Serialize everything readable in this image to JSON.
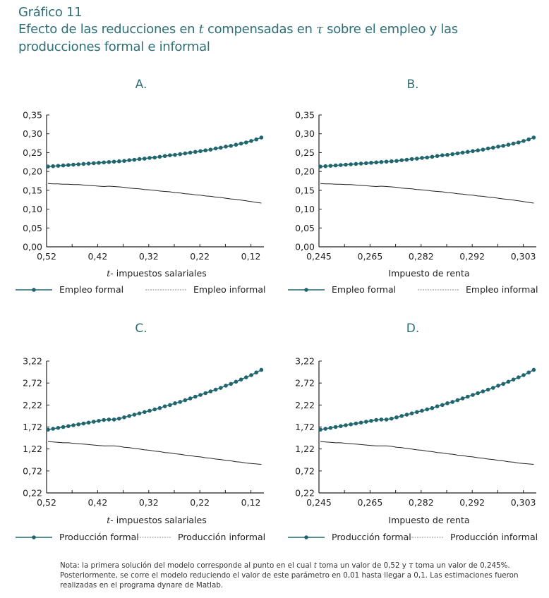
{
  "header": {
    "figure_number": "Gráfico 11",
    "title_part1": "Efecto de las reducciones en ",
    "title_var1": "t",
    "title_part2": " compensadas en ",
    "title_var2": "τ",
    "title_part3": " sobre el empleo y las",
    "title_line3": "producciones formal e informal"
  },
  "note": {
    "part1": "Nota: la primera solución del modelo corresponde al punto en el cual ",
    "var1": "t",
    "part2": " toma un valor de 0,52 y ",
    "var2": "τ",
    "part3": " toma un valor de 0,245%. Posteriormente, se corre el modelo reduciendo el valor de este parámetro en 0,01 hasta llegar a 0,1. Las estimaciones fueron realizadas en el programa dynare de Matlab."
  },
  "colors": {
    "title": "#2e6f77",
    "formal_series": "#1f666e",
    "informal_series": "#222222",
    "axis": "#222222"
  },
  "chart_data": [
    {
      "panel": "A.",
      "type": "line",
      "xlabel_var": "t",
      "xlabel": "- impuestos salariales",
      "ylabel": "",
      "ylim": [
        0.0,
        0.35
      ],
      "yticks": [
        "0,00",
        "0,05",
        "0,10",
        "0,15",
        "0,20",
        "0,25",
        "0,30",
        "0,35"
      ],
      "xtick_labels": [
        "0,52",
        "0,42",
        "0,32",
        "0,22",
        "0,12"
      ],
      "x_direction": "decreasing t from 0.52 to 0.10 in steps of 0.01",
      "legend": "bottom",
      "series": [
        {
          "name": "Empleo formal",
          "marker": "dot",
          "values": [
            0.213,
            0.214,
            0.215,
            0.216,
            0.217,
            0.218,
            0.219,
            0.22,
            0.221,
            0.222,
            0.223,
            0.224,
            0.225,
            0.226,
            0.227,
            0.228,
            0.23,
            0.231,
            0.233,
            0.234,
            0.236,
            0.237,
            0.239,
            0.241,
            0.243,
            0.244,
            0.246,
            0.248,
            0.25,
            0.252,
            0.254,
            0.256,
            0.258,
            0.261,
            0.263,
            0.266,
            0.268,
            0.271,
            0.274,
            0.277,
            0.281,
            0.285,
            0.29
          ]
        },
        {
          "name": "Empleo informal",
          "marker": "none",
          "values": [
            0.168,
            0.167,
            0.167,
            0.166,
            0.166,
            0.165,
            0.165,
            0.164,
            0.163,
            0.162,
            0.161,
            0.16,
            0.161,
            0.16,
            0.159,
            0.158,
            0.156,
            0.155,
            0.154,
            0.152,
            0.151,
            0.15,
            0.148,
            0.147,
            0.146,
            0.144,
            0.143,
            0.141,
            0.14,
            0.138,
            0.137,
            0.135,
            0.134,
            0.132,
            0.131,
            0.129,
            0.127,
            0.126,
            0.124,
            0.122,
            0.12,
            0.118,
            0.116
          ]
        }
      ]
    },
    {
      "panel": "B.",
      "type": "line",
      "xlabel_var": "",
      "xlabel": "Impuesto de renta",
      "ylabel": "",
      "ylim": [
        0.0,
        0.35
      ],
      "yticks": [
        "0,00",
        "0,05",
        "0,10",
        "0,15",
        "0,20",
        "0,25",
        "0,30",
        "0,35"
      ],
      "xtick_labels": [
        "0,245",
        "0,265",
        "0,282",
        "0,292",
        "0,303"
      ],
      "legend": "bottom",
      "series": [
        {
          "name": "Empleo formal",
          "marker": "dot",
          "values": [
            0.213,
            0.214,
            0.215,
            0.216,
            0.217,
            0.218,
            0.219,
            0.22,
            0.221,
            0.222,
            0.223,
            0.224,
            0.225,
            0.226,
            0.227,
            0.228,
            0.23,
            0.231,
            0.233,
            0.234,
            0.236,
            0.237,
            0.239,
            0.241,
            0.243,
            0.244,
            0.246,
            0.248,
            0.25,
            0.252,
            0.254,
            0.256,
            0.258,
            0.261,
            0.263,
            0.266,
            0.268,
            0.271,
            0.274,
            0.277,
            0.281,
            0.285,
            0.29
          ]
        },
        {
          "name": "Empleo informal",
          "marker": "none",
          "values": [
            0.168,
            0.167,
            0.167,
            0.166,
            0.166,
            0.165,
            0.165,
            0.164,
            0.163,
            0.162,
            0.161,
            0.16,
            0.161,
            0.16,
            0.159,
            0.158,
            0.156,
            0.155,
            0.154,
            0.152,
            0.151,
            0.15,
            0.148,
            0.147,
            0.146,
            0.144,
            0.143,
            0.141,
            0.14,
            0.138,
            0.137,
            0.135,
            0.134,
            0.132,
            0.131,
            0.129,
            0.127,
            0.126,
            0.124,
            0.122,
            0.12,
            0.118,
            0.116
          ]
        }
      ]
    },
    {
      "panel": "C.",
      "type": "line",
      "xlabel_var": "t",
      "xlabel": "- impuestos salariales",
      "ylabel": "",
      "ylim": [
        0.22,
        3.22
      ],
      "yticks": [
        "0,22",
        "0,72",
        "1,22",
        "1,72",
        "2,22",
        "2,72",
        "3,22"
      ],
      "xtick_labels": [
        "0,52",
        "0,42",
        "0,32",
        "0,22",
        "0,12"
      ],
      "legend": "bottom",
      "series": [
        {
          "name": "Producción formal",
          "marker": "dot",
          "values": [
            1.66,
            1.68,
            1.7,
            1.72,
            1.74,
            1.76,
            1.78,
            1.8,
            1.82,
            1.84,
            1.86,
            1.88,
            1.89,
            1.89,
            1.91,
            1.94,
            1.97,
            2.0,
            2.03,
            2.06,
            2.09,
            2.12,
            2.15,
            2.19,
            2.22,
            2.26,
            2.29,
            2.33,
            2.37,
            2.41,
            2.45,
            2.49,
            2.53,
            2.57,
            2.61,
            2.66,
            2.7,
            2.75,
            2.8,
            2.85,
            2.9,
            2.96,
            3.02
          ]
        },
        {
          "name": "Producción informal",
          "marker": "none",
          "values": [
            1.39,
            1.38,
            1.37,
            1.36,
            1.36,
            1.35,
            1.34,
            1.33,
            1.32,
            1.31,
            1.3,
            1.29,
            1.29,
            1.29,
            1.28,
            1.26,
            1.25,
            1.23,
            1.22,
            1.2,
            1.19,
            1.17,
            1.16,
            1.14,
            1.13,
            1.11,
            1.1,
            1.08,
            1.07,
            1.05,
            1.04,
            1.02,
            1.01,
            0.99,
            0.98,
            0.96,
            0.95,
            0.93,
            0.92,
            0.9,
            0.89,
            0.88,
            0.87
          ]
        }
      ]
    },
    {
      "panel": "D.",
      "type": "line",
      "xlabel_var": "",
      "xlabel": "Impuesto de renta",
      "ylabel": "",
      "ylim": [
        0.22,
        3.22
      ],
      "yticks": [
        "0,22",
        "0,72",
        "1,22",
        "1,72",
        "2,22",
        "2,72",
        "3,22"
      ],
      "xtick_labels": [
        "0,245",
        "0,265",
        "0,282",
        "0,292",
        "0,303"
      ],
      "legend": "bottom",
      "series": [
        {
          "name": "Producción formal",
          "marker": "dot",
          "values": [
            1.66,
            1.68,
            1.7,
            1.72,
            1.74,
            1.76,
            1.78,
            1.8,
            1.82,
            1.84,
            1.86,
            1.88,
            1.89,
            1.89,
            1.91,
            1.94,
            1.97,
            2.0,
            2.03,
            2.06,
            2.09,
            2.12,
            2.15,
            2.19,
            2.22,
            2.26,
            2.29,
            2.33,
            2.37,
            2.41,
            2.45,
            2.49,
            2.53,
            2.57,
            2.61,
            2.66,
            2.7,
            2.75,
            2.8,
            2.85,
            2.9,
            2.96,
            3.02
          ]
        },
        {
          "name": "Producción informal",
          "marker": "none",
          "values": [
            1.39,
            1.38,
            1.37,
            1.36,
            1.36,
            1.35,
            1.34,
            1.33,
            1.32,
            1.31,
            1.3,
            1.29,
            1.29,
            1.29,
            1.28,
            1.26,
            1.25,
            1.23,
            1.22,
            1.2,
            1.19,
            1.17,
            1.16,
            1.14,
            1.13,
            1.11,
            1.1,
            1.08,
            1.07,
            1.05,
            1.04,
            1.02,
            1.01,
            0.99,
            0.98,
            0.96,
            0.95,
            0.93,
            0.92,
            0.9,
            0.89,
            0.88,
            0.87
          ]
        }
      ]
    }
  ]
}
